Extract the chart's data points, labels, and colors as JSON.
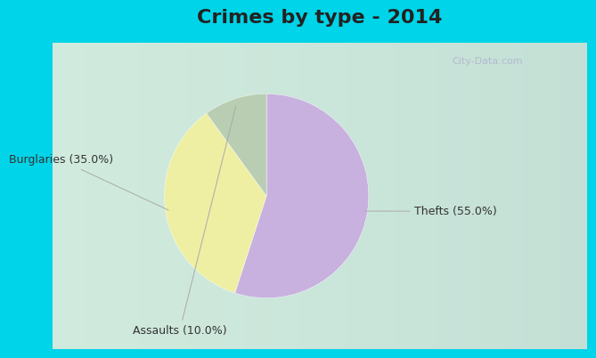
{
  "title": "Crimes by type - 2014",
  "slices": [
    {
      "label": "Thefts (55.0%)",
      "value": 55.0,
      "color": "#c8aee0"
    },
    {
      "label": "Burglaries (35.0%)",
      "value": 35.0,
      "color": "#f0f0a0"
    },
    {
      "label": "Assaults (10.0%)",
      "value": 10.0,
      "color": "#b8ccb0"
    }
  ],
  "background_border": "#00d4e8",
  "background_main_top": "#d8eee4",
  "background_main_bottom": "#c0dcd0",
  "title_fontsize": 16,
  "label_fontsize": 9,
  "watermark": "City-Data.com",
  "startangle": 90,
  "title_color": "#333333",
  "label_color": "#333333",
  "border_thickness": 0.06
}
